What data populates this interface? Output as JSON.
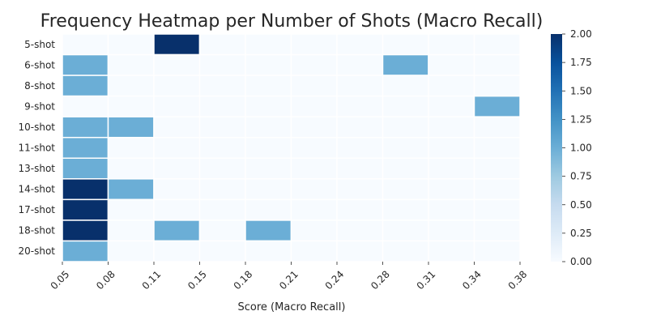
{
  "chart_data": {
    "type": "heatmap",
    "title": "Frequency Heatmap per Number of Shots (Macro Recall)",
    "xlabel": "Score (Macro Recall)",
    "ylabel": "",
    "x_tick_labels": [
      "0.05",
      "0.08",
      "0.11",
      "0.15",
      "0.18",
      "0.21",
      "0.24",
      "0.28",
      "0.31",
      "0.34",
      "0.38"
    ],
    "rows": [
      "5-shot",
      "6-shot",
      "8-shot",
      "9-shot",
      "10-shot",
      "11-shot",
      "13-shot",
      "14-shot",
      "17-shot",
      "18-shot",
      "20-shot"
    ],
    "values": [
      [
        0,
        0,
        2,
        0,
        0,
        0,
        0,
        0,
        0,
        0
      ],
      [
        1,
        0,
        0,
        0,
        0,
        0,
        0,
        1,
        0,
        0
      ],
      [
        1,
        0,
        0,
        0,
        0,
        0,
        0,
        0,
        0,
        0
      ],
      [
        0,
        0,
        0,
        0,
        0,
        0,
        0,
        0,
        0,
        1
      ],
      [
        1,
        1,
        0,
        0,
        0,
        0,
        0,
        0,
        0,
        0
      ],
      [
        1,
        0,
        0,
        0,
        0,
        0,
        0,
        0,
        0,
        0
      ],
      [
        1,
        0,
        0,
        0,
        0,
        0,
        0,
        0,
        0,
        0
      ],
      [
        2,
        1,
        0,
        0,
        0,
        0,
        0,
        0,
        0,
        0
      ],
      [
        2,
        0,
        0,
        0,
        0,
        0,
        0,
        0,
        0,
        0
      ],
      [
        2,
        0,
        1,
        0,
        1,
        0,
        0,
        0,
        0,
        0
      ],
      [
        1,
        0,
        0,
        0,
        0,
        0,
        0,
        0,
        0,
        0
      ]
    ],
    "colorbar": {
      "range": [
        0,
        2
      ],
      "tick_labels": [
        "0.00",
        "0.25",
        "0.50",
        "0.75",
        "1.00",
        "1.25",
        "1.50",
        "1.75",
        "2.00"
      ],
      "colormap": "Blues"
    },
    "colors": {
      "zero": "#f7fbff",
      "one": "#6baed6",
      "two": "#08306b"
    },
    "grid": false
  }
}
